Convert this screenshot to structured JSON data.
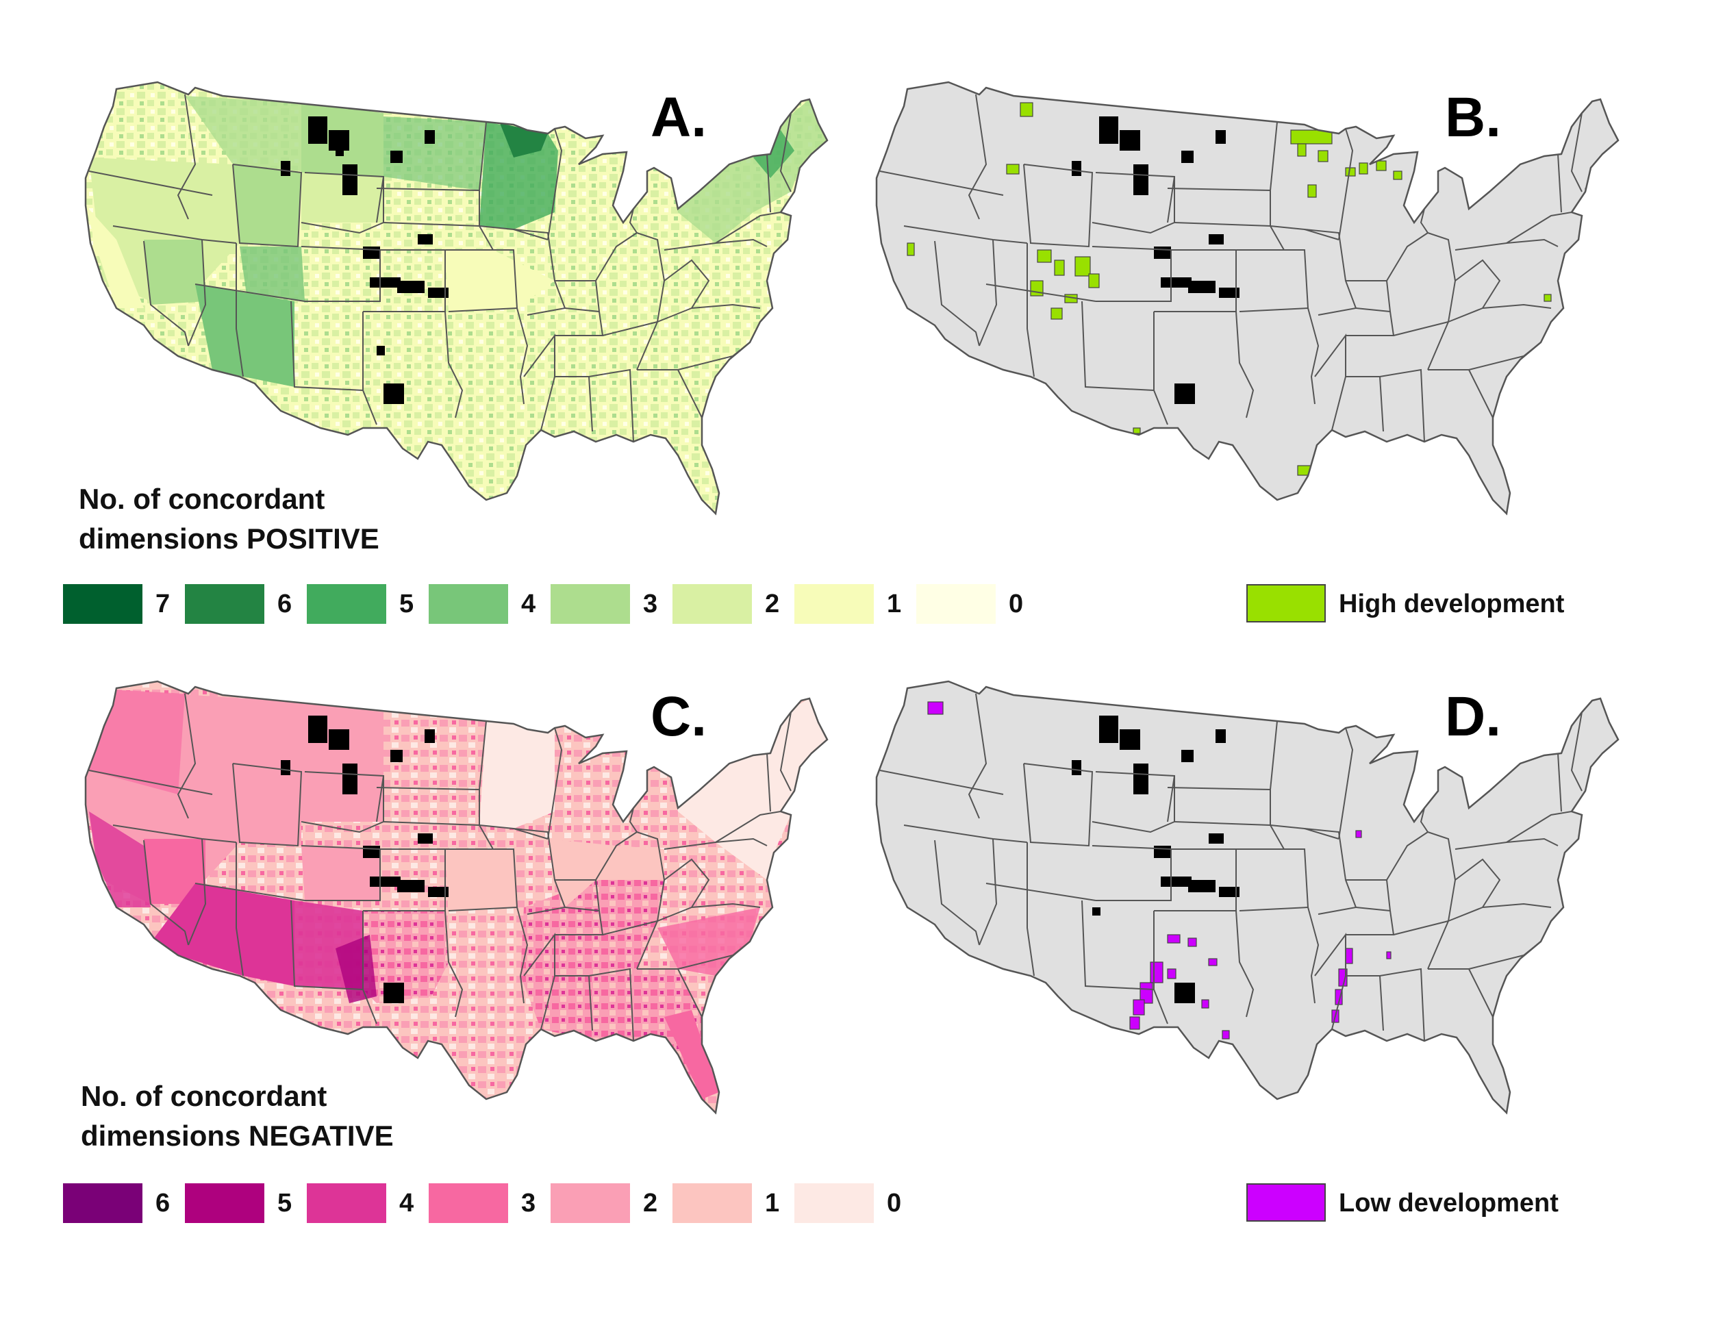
{
  "panels": {
    "A": {
      "label": "A.",
      "legend_title_line1": "No. of concordant",
      "legend_title_line2": "dimensions POSITIVE",
      "legend": [
        {
          "value": "7",
          "color": "#00602e"
        },
        {
          "value": "6",
          "color": "#238443"
        },
        {
          "value": "5",
          "color": "#41ab5d"
        },
        {
          "value": "4",
          "color": "#78c679"
        },
        {
          "value": "3",
          "color": "#addd8e"
        },
        {
          "value": "2",
          "color": "#d9f0a3"
        },
        {
          "value": "1",
          "color": "#f7fcb9"
        },
        {
          "value": "0",
          "color": "#ffffe5"
        }
      ]
    },
    "B": {
      "label": "B.",
      "legend_label": "High development",
      "legend_color": "#99e000"
    },
    "C": {
      "label": "C.",
      "legend_title_line1": "No. of concordant",
      "legend_title_line2": "dimensions NEGATIVE",
      "legend": [
        {
          "value": "6",
          "color": "#7a0177"
        },
        {
          "value": "5",
          "color": "#ae017e"
        },
        {
          "value": "4",
          "color": "#dd3497"
        },
        {
          "value": "3",
          "color": "#f768a1"
        },
        {
          "value": "2",
          "color": "#fa9fb5"
        },
        {
          "value": "1",
          "color": "#fcc5c0"
        },
        {
          "value": "0",
          "color": "#fde9e4"
        }
      ]
    },
    "D": {
      "label": "D.",
      "legend_label": "Low development",
      "legend_color": "#cc00ff"
    }
  },
  "colors": {
    "base_gray": "#e0e0e0",
    "border": "#555555",
    "missing": "#000000"
  }
}
